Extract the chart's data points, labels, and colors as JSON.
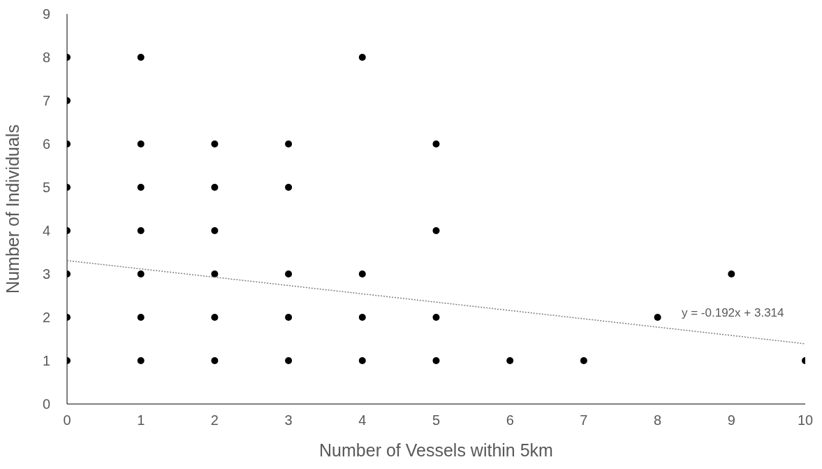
{
  "chart_data": {
    "type": "scatter",
    "xlabel": "Number of Vessels within 5km",
    "ylabel": "Number of Individuals",
    "xlim": [
      0,
      10
    ],
    "xticks": [
      0,
      1,
      2,
      3,
      4,
      5,
      6,
      7,
      8,
      9,
      10
    ],
    "ylim": [
      0,
      9
    ],
    "yticks": [
      0,
      1,
      2,
      3,
      4,
      5,
      6,
      7,
      8,
      9
    ],
    "grid": false,
    "legend": false,
    "marker": "circle",
    "series": [
      {
        "color": "#000000",
        "x": [
          0,
          0,
          0,
          0,
          0,
          0,
          0,
          0,
          1,
          1,
          1,
          1,
          1,
          1,
          1,
          2,
          2,
          2,
          2,
          2,
          2,
          3,
          3,
          3,
          3,
          3,
          4,
          4,
          4,
          4,
          5,
          5,
          5,
          5,
          6,
          7,
          8,
          9,
          10
        ],
        "values": [
          8,
          7,
          6,
          5,
          4,
          3,
          2,
          1,
          8,
          6,
          5,
          4,
          3,
          2,
          1,
          6,
          5,
          4,
          3,
          2,
          1,
          6,
          5,
          3,
          2,
          1,
          8,
          3,
          2,
          1,
          6,
          4,
          2,
          1,
          1,
          1,
          2,
          3,
          1
        ]
      },
      {
        "type": "line",
        "color": "#7f7f7f",
        "line_style": "dotted",
        "marker": "none",
        "x": [
          0,
          10
        ],
        "values": [
          3.31,
          1.39
        ]
      }
    ],
    "annotations": [
      "y = -0.192x + 3.314"
    ]
  }
}
